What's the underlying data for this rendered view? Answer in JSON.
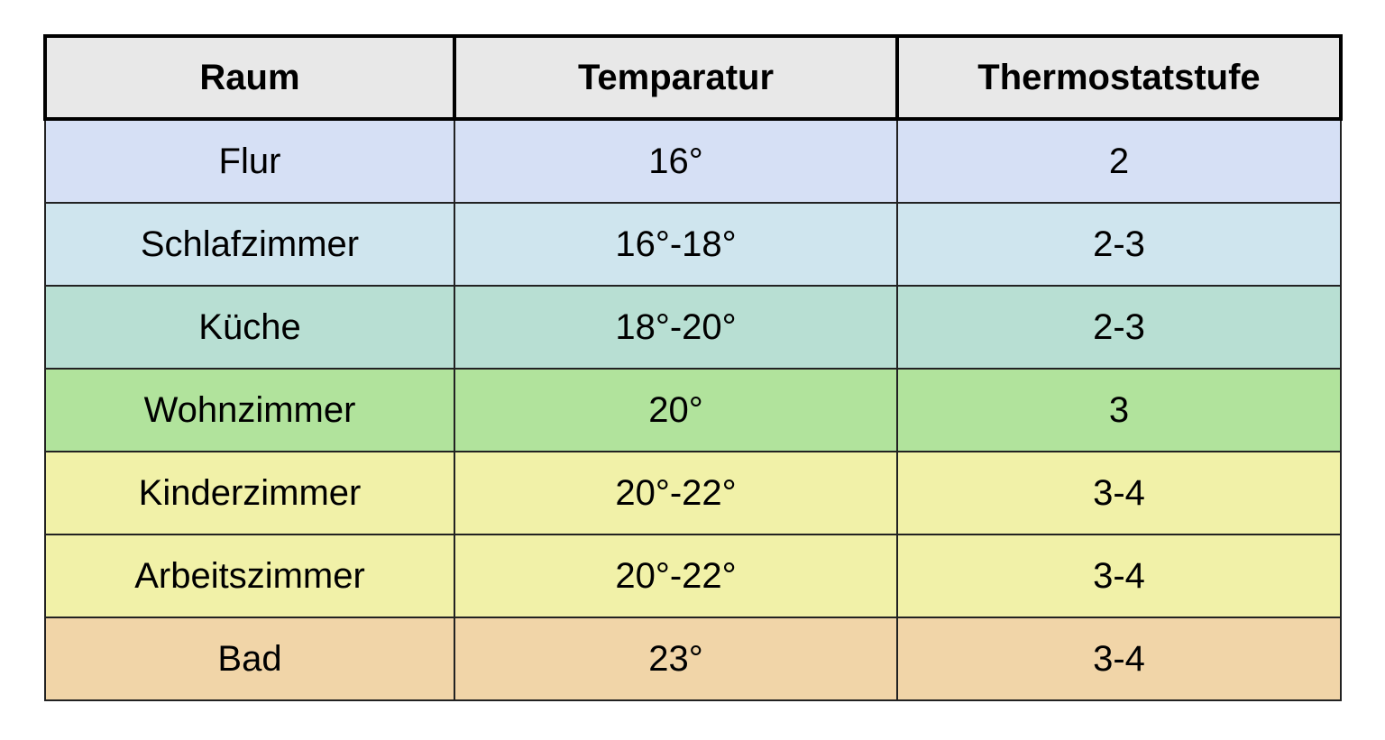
{
  "table": {
    "headers": [
      "Raum",
      "Temparatur",
      "Thermostatstufe"
    ],
    "rows": [
      {
        "raum": "Flur",
        "temperatur": "16°",
        "stufe": "2",
        "color": "#d6e0f5"
      },
      {
        "raum": "Schlafzimmer",
        "temperatur": "16°-18°",
        "stufe": "2-3",
        "color": "#cfe5ee"
      },
      {
        "raum": "Küche",
        "temperatur": "18°-20°",
        "stufe": "2-3",
        "color": "#b8dfd3"
      },
      {
        "raum": "Wohnzimmer",
        "temperatur": "20°",
        "stufe": "3",
        "color": "#b1e39c"
      },
      {
        "raum": "Kinderzimmer",
        "temperatur": "20°-22°",
        "stufe": "3-4",
        "color": "#f1f1a8"
      },
      {
        "raum": "Arbeitszimmer",
        "temperatur": "20°-22°",
        "stufe": "3-4",
        "color": "#f1f1a8"
      },
      {
        "raum": "Bad",
        "temperatur": "23°",
        "stufe": "3-4",
        "color": "#f1d5a8"
      }
    ]
  }
}
